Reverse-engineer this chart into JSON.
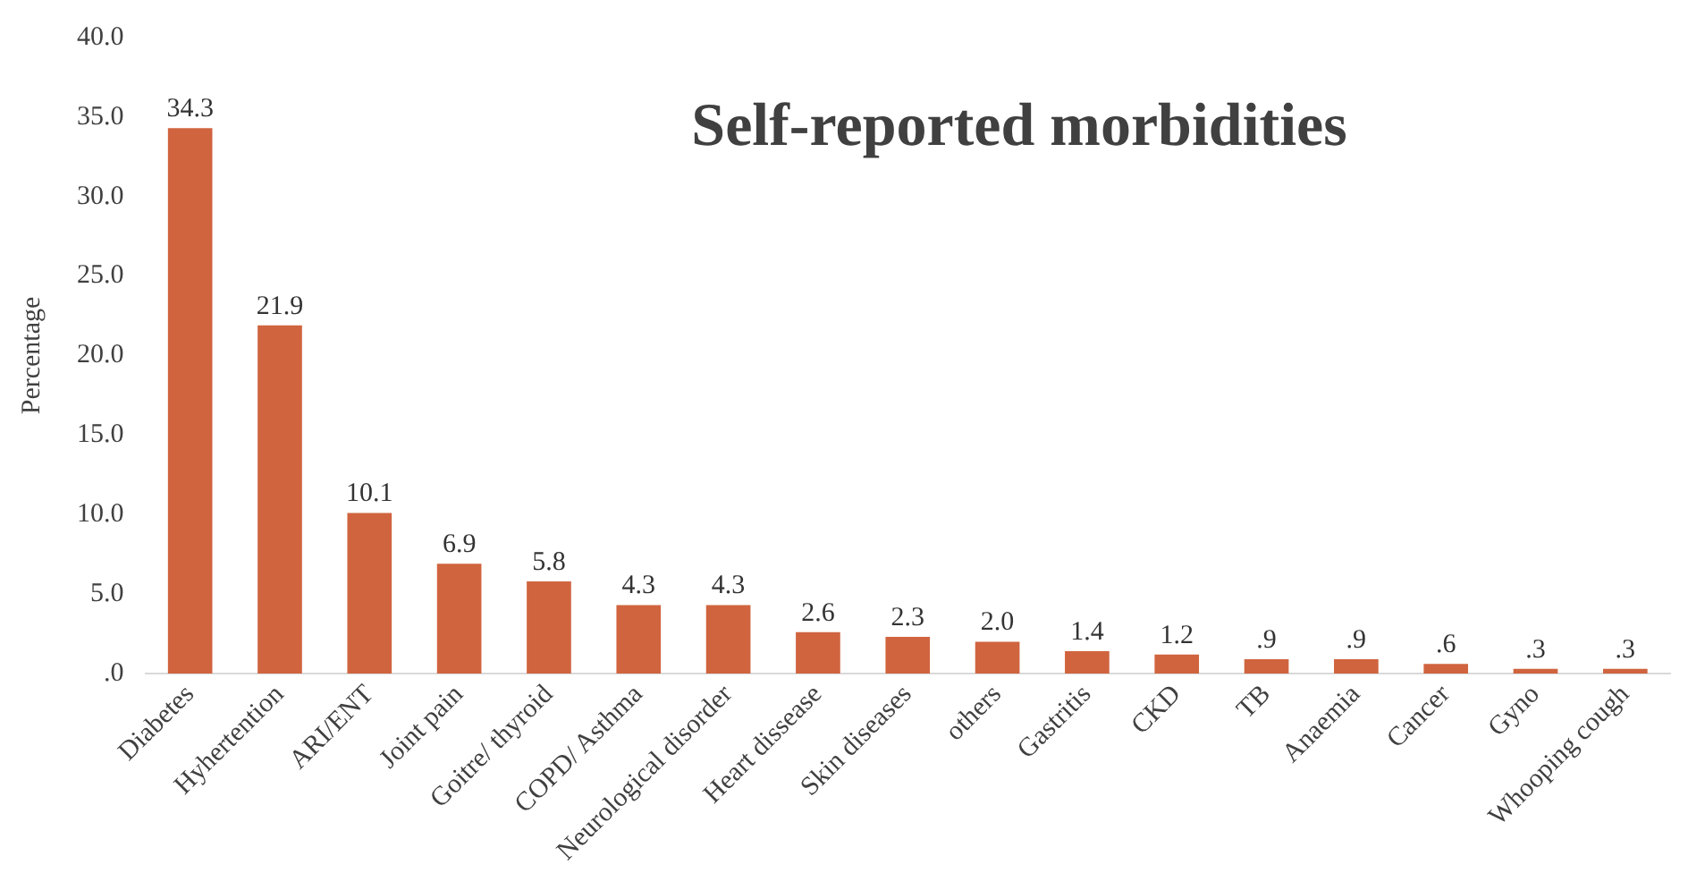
{
  "chart_data": {
    "type": "bar",
    "title": "Self-reported morbidities",
    "ylabel": "Percentage",
    "categories": [
      "Diabetes",
      "Hyhertention",
      "ARI/ENT",
      "Joint pain",
      "Goitre/ thyroid",
      "COPD/ Asthma",
      "Neurological disorder",
      "Heart dissease",
      "Skin diseases",
      "others",
      "Gastritis",
      "CKD",
      "TB",
      "Anaemia",
      "Cancer",
      "Gyno",
      "Whooping cough"
    ],
    "values": [
      34.3,
      21.9,
      10.1,
      6.9,
      5.8,
      4.3,
      4.3,
      2.6,
      2.3,
      2.0,
      1.4,
      1.2,
      0.9,
      0.9,
      0.6,
      0.3,
      0.3
    ],
    "value_labels": [
      "34.3",
      "21.9",
      "10.1",
      "6.9",
      "5.8",
      "4.3",
      "4.3",
      "2.6",
      "2.3",
      "2.0",
      "1.4",
      "1.2",
      ".9",
      ".9",
      ".6",
      ".3",
      ".3"
    ],
    "color": "#d0643f",
    "ylim": [
      0,
      40
    ],
    "yticks": [
      {
        "value": 0,
        "label": ".0"
      },
      {
        "value": 5,
        "label": "5.0"
      },
      {
        "value": 10,
        "label": "10.0"
      },
      {
        "value": 15,
        "label": "15.0"
      },
      {
        "value": 20,
        "label": "20.0"
      },
      {
        "value": 25,
        "label": "25.0"
      },
      {
        "value": 30,
        "label": "30.0"
      },
      {
        "value": 35,
        "label": "35.0"
      },
      {
        "value": 40,
        "label": "40.0"
      }
    ],
    "grid": false
  }
}
